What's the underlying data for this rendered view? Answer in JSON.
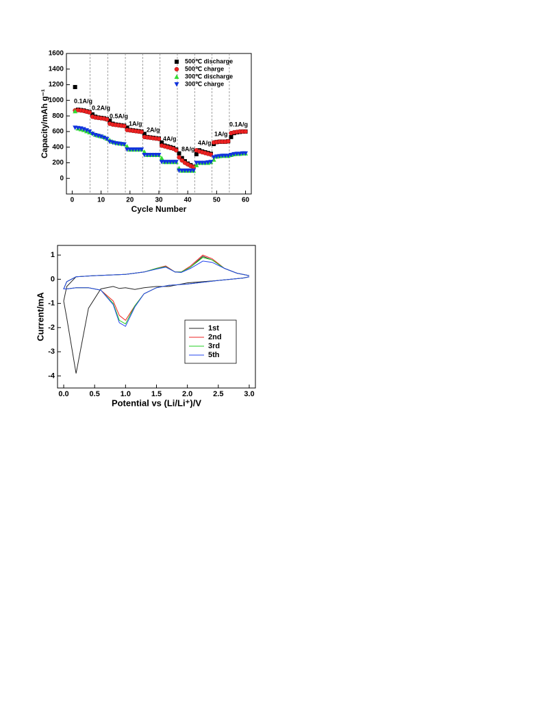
{
  "chart_data": [
    {
      "type": "scatter",
      "xlabel": "Cycle Number",
      "ylabel": "Capacity/mAh g⁻¹",
      "x": [
        1,
        2,
        3,
        4,
        5,
        6,
        7,
        8,
        9,
        10,
        11,
        12,
        13,
        14,
        15,
        16,
        17,
        18,
        19,
        20,
        21,
        22,
        23,
        24,
        25,
        26,
        27,
        28,
        29,
        30,
        31,
        32,
        33,
        34,
        35,
        36,
        37,
        38,
        39,
        40,
        41,
        42,
        43,
        44,
        45,
        46,
        47,
        48,
        49,
        50,
        51,
        52,
        53,
        54,
        55,
        56,
        57,
        58,
        59,
        60
      ],
      "xlim": [
        -2,
        62
      ],
      "xticks": [
        0,
        10,
        20,
        30,
        40,
        50,
        60
      ],
      "ylim": [
        -200,
        1600
      ],
      "yticks": [
        0,
        200,
        400,
        600,
        800,
        1000,
        1200,
        1400,
        1600
      ],
      "rate_boundaries": [
        6.2,
        12.3,
        18.4,
        24.4,
        30.4,
        36.4,
        42.4,
        48.4,
        54.4
      ],
      "annotations": [
        "0.1A/g",
        "0.2A/g",
        "0.5A/g",
        "1A/g",
        "2A/g",
        "4A/g",
        "8A/g",
        "4A/g",
        "1A/g",
        "0.1A/g"
      ],
      "series": [
        {
          "name": "500℃ discharge",
          "color": "#000000",
          "marker": "square",
          "values": [
            1170,
            880,
            875,
            870,
            860,
            850,
            820,
            790,
            780,
            775,
            770,
            760,
            740,
            700,
            690,
            685,
            680,
            675,
            650,
            620,
            615,
            610,
            605,
            600,
            570,
            530,
            525,
            520,
            515,
            510,
            460,
            420,
            410,
            400,
            390,
            370,
            320,
            260,
            220,
            190,
            170,
            150,
            310,
            360,
            345,
            335,
            325,
            315,
            440,
            465,
            470,
            470,
            470,
            475,
            530,
            580,
            590,
            595,
            600,
            600
          ]
        },
        {
          "name": "500℃ charge",
          "color": "#ee2222",
          "marker": "circle",
          "values": [
            870,
            875,
            870,
            865,
            855,
            845,
            790,
            780,
            775,
            770,
            765,
            755,
            700,
            690,
            685,
            680,
            675,
            670,
            620,
            615,
            610,
            605,
            600,
            595,
            530,
            525,
            520,
            515,
            510,
            505,
            420,
            410,
            400,
            390,
            380,
            360,
            270,
            230,
            200,
            180,
            160,
            145,
            360,
            345,
            335,
            325,
            315,
            305,
            460,
            465,
            470,
            470,
            470,
            475,
            580,
            590,
            595,
            600,
            600,
            600
          ]
        },
        {
          "name": "300℃ discharge",
          "color": "#33dd33",
          "marker": "triangle-up",
          "values": [
            860,
            640,
            630,
            620,
            605,
            590,
            580,
            560,
            550,
            540,
            530,
            510,
            490,
            470,
            460,
            450,
            445,
            440,
            410,
            370,
            370,
            370,
            370,
            370,
            340,
            300,
            300,
            300,
            300,
            300,
            260,
            210,
            210,
            210,
            210,
            210,
            130,
            100,
            100,
            100,
            100,
            100,
            170,
            200,
            200,
            200,
            200,
            210,
            240,
            280,
            285,
            290,
            290,
            290,
            300,
            310,
            315,
            315,
            320,
            320
          ]
        },
        {
          "name": "300℃ charge",
          "color": "#1133dd",
          "marker": "triangle-down",
          "values": [
            650,
            645,
            640,
            630,
            615,
            600,
            570,
            555,
            545,
            535,
            520,
            505,
            470,
            460,
            450,
            445,
            440,
            435,
            370,
            370,
            370,
            370,
            370,
            370,
            300,
            300,
            300,
            300,
            300,
            300,
            210,
            210,
            210,
            210,
            210,
            210,
            100,
            100,
            100,
            100,
            100,
            100,
            200,
            200,
            200,
            200,
            205,
            210,
            270,
            280,
            285,
            290,
            290,
            290,
            300,
            310,
            315,
            315,
            320,
            320
          ]
        }
      ]
    },
    {
      "type": "line",
      "xlabel": "Potential vs (Li/Li⁺)/V",
      "ylabel": "Current/mA",
      "x": [
        3.0,
        2.9,
        2.5,
        2.0,
        1.7,
        1.5,
        1.3,
        1.15,
        1.0,
        0.9,
        0.8,
        0.6,
        0.4,
        0.2,
        0.05,
        0.0,
        0.05,
        0.2,
        0.5,
        1.0,
        1.3,
        1.5,
        1.65,
        1.8,
        1.9,
        2.05,
        2.25,
        2.4,
        2.6,
        2.8,
        3.0
      ],
      "xlim": [
        -0.1,
        3.1
      ],
      "xticks": [
        {
          "value": 0,
          "label": "0.0"
        },
        {
          "value": 0.5,
          "label": "0.5"
        },
        {
          "value": 1,
          "label": "1.0"
        },
        {
          "value": 1.5,
          "label": "1.5"
        },
        {
          "value": 2,
          "label": "2.0"
        },
        {
          "value": 2.5,
          "label": "2.5"
        },
        {
          "value": 3,
          "label": "3.0"
        }
      ],
      "ylim": [
        -4.5,
        1.4
      ],
      "yticks": [
        1,
        0,
        -1,
        -2,
        -3,
        -4
      ],
      "series": [
        {
          "name": "1st",
          "color": "#222222",
          "values": [
            0.1,
            0.05,
            -0.05,
            -0.15,
            -0.3,
            -0.3,
            -0.35,
            -0.42,
            -0.35,
            -0.38,
            -0.3,
            -0.4,
            -1.2,
            -3.9,
            -1.6,
            -0.9,
            -0.3,
            0.1,
            0.15,
            0.2,
            0.3,
            0.45,
            0.55,
            0.3,
            0.3,
            0.5,
            0.95,
            0.8,
            0.45,
            0.25,
            0.15
          ]
        },
        {
          "name": "2nd",
          "color": "#ee2222",
          "values": [
            0.1,
            0.05,
            -0.05,
            -0.2,
            -0.25,
            -0.35,
            -0.6,
            -1.1,
            -1.7,
            -1.5,
            -0.9,
            -0.45,
            -0.35,
            -0.35,
            -0.4,
            -0.4,
            -0.1,
            0.1,
            0.15,
            0.2,
            0.3,
            0.45,
            0.55,
            0.3,
            0.3,
            0.55,
            1.0,
            0.85,
            0.45,
            0.25,
            0.15
          ]
        },
        {
          "name": "3rd",
          "color": "#22cc22",
          "values": [
            0.1,
            0.05,
            -0.05,
            -0.2,
            -0.25,
            -0.35,
            -0.6,
            -1.1,
            -1.85,
            -1.7,
            -1.0,
            -0.45,
            -0.35,
            -0.35,
            -0.4,
            -0.4,
            -0.1,
            0.1,
            0.15,
            0.2,
            0.3,
            0.45,
            0.52,
            0.3,
            0.3,
            0.5,
            0.9,
            0.8,
            0.45,
            0.25,
            0.15
          ]
        },
        {
          "name": "5th",
          "color": "#2244ee",
          "values": [
            0.1,
            0.05,
            -0.05,
            -0.2,
            -0.25,
            -0.35,
            -0.6,
            -1.15,
            -1.95,
            -1.8,
            -1.05,
            -0.45,
            -0.35,
            -0.35,
            -0.4,
            -0.4,
            -0.1,
            0.1,
            0.15,
            0.2,
            0.3,
            0.42,
            0.5,
            0.3,
            0.28,
            0.45,
            0.75,
            0.7,
            0.45,
            0.25,
            0.15
          ]
        }
      ]
    }
  ]
}
